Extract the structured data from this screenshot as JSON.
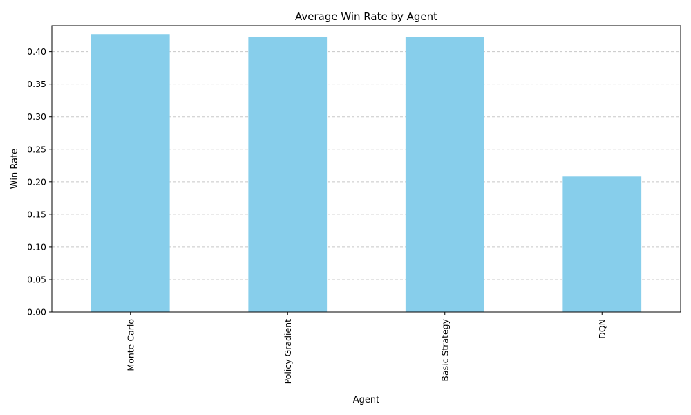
{
  "chart_data": {
    "type": "bar",
    "title": "Average Win Rate by Agent",
    "xlabel": "Agent",
    "ylabel": "Win Rate",
    "categories": [
      "Monte Carlo",
      "Policy Gradient",
      "Basic Strategy",
      "DQN"
    ],
    "values": [
      0.427,
      0.423,
      0.422,
      0.208
    ],
    "ylim": [
      0,
      0.44
    ],
    "yticks": [
      "0.00",
      "0.05",
      "0.10",
      "0.15",
      "0.20",
      "0.25",
      "0.30",
      "0.35",
      "0.40"
    ],
    "grid": "y-dashed",
    "legend": "none",
    "bar_color": "#87ceeb"
  }
}
